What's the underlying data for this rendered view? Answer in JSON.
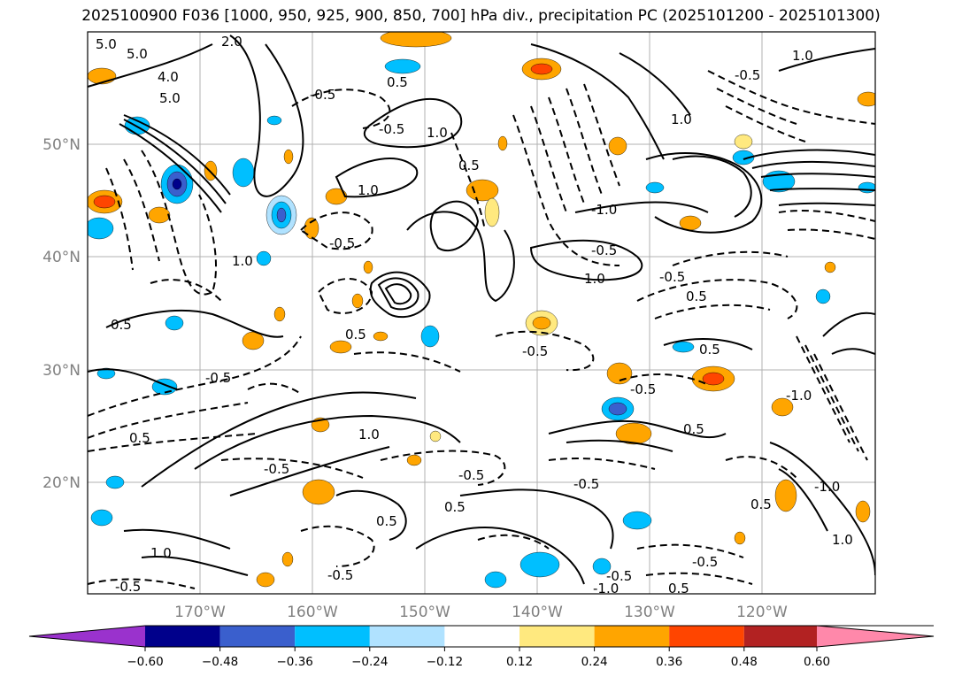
{
  "title": "2025100900 F036 [1000, 950, 925, 900, 850, 700] hPa div., precipitation PC (2025101200 - 2025101300)",
  "lat_labels": [
    "50°N",
    "40°N",
    "30°N",
    "20°N"
  ],
  "lon_labels": [
    "170°W",
    "160°W",
    "150°W",
    "140°W",
    "130°W",
    "120°W"
  ],
  "colorbar": {
    "ticks": [
      "−0.60",
      "−0.48",
      "−0.36",
      "−0.24",
      "−0.12",
      "0.12",
      "0.24",
      "0.36",
      "0.48",
      "0.60"
    ],
    "colors": [
      "#9a32cd",
      "#00008b",
      "#3a5fcd",
      "#00bfff",
      "#b0e2ff",
      "#ffffff",
      "#ffe97f",
      "#ffa500",
      "#ff4500",
      "#b22222",
      "#ff88aa"
    ]
  },
  "contour_labels": [
    "5.0",
    "5.0",
    "4.0",
    "5.0",
    "2.0",
    "-0.5",
    "0.5",
    "-0.5",
    "1.0",
    "0.5",
    "1.0",
    "-0.5",
    "0.5",
    "-0.5",
    "0.5",
    "-0.5",
    "0.5",
    "-0.5",
    "1.0",
    "-0.5",
    "0.5",
    "-0.5",
    "1.0",
    "0.5",
    "-0.5",
    "0.5",
    "-0.5",
    "1.0",
    "-0.5",
    "0.5",
    "-0.5",
    "-1.0",
    "0.5",
    "-1.0",
    "1.0",
    "0.5",
    "-0.5",
    "-0.5",
    "0.5",
    "-0.5",
    "-1.0",
    "1.0",
    "-0.5",
    "1.0",
    "1.0",
    "-1.0"
  ]
}
